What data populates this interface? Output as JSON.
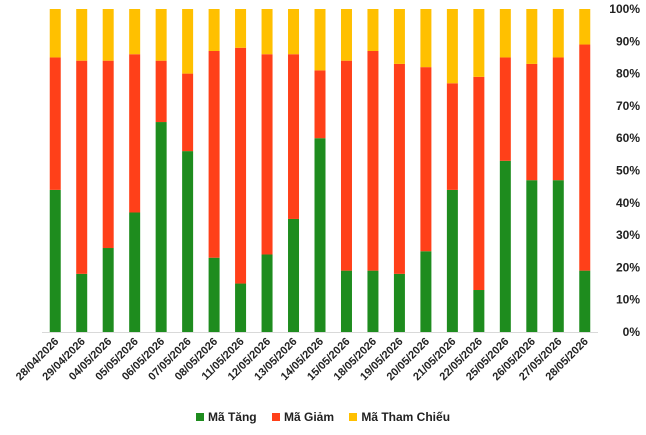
{
  "chart_data": {
    "type": "bar",
    "stacked": true,
    "percent": true,
    "categories": [
      "28/04/2026",
      "29/04/2026",
      "04/05/2026",
      "05/05/2026",
      "06/05/2026",
      "07/05/2026",
      "08/05/2026",
      "11/05/2026",
      "12/05/2026",
      "13/05/2026",
      "14/05/2026",
      "15/05/2026",
      "18/05/2026",
      "19/05/2026",
      "20/05/2026",
      "21/05/2026",
      "22/05/2026",
      "25/05/2026",
      "26/05/2026",
      "27/05/2026",
      "28/05/2026"
    ],
    "series": [
      {
        "name": "Mã Tăng",
        "color": "#1e8c1e",
        "values": [
          44,
          18,
          26,
          37,
          65,
          56,
          23,
          15,
          24,
          35,
          60,
          19,
          19,
          18,
          25,
          44,
          13,
          53,
          47,
          47,
          19
        ]
      },
      {
        "name": "Mã Giảm",
        "color": "#ff4019",
        "values": [
          41,
          66,
          58,
          49,
          19,
          24,
          64,
          73,
          62,
          51,
          21,
          65,
          68,
          65,
          57,
          33,
          66,
          32,
          36,
          38,
          70
        ]
      },
      {
        "name": "Mã Tham Chiếu",
        "color": "#ffc000",
        "values": [
          15,
          16,
          16,
          14,
          16,
          20,
          13,
          12,
          14,
          14,
          19,
          16,
          13,
          17,
          18,
          23,
          21,
          15,
          17,
          15,
          11
        ]
      }
    ],
    "y_ticks": [
      "0%",
      "10%",
      "20%",
      "30%",
      "40%",
      "50%",
      "60%",
      "70%",
      "80%",
      "90%",
      "100%"
    ],
    "ylim": [
      0,
      100
    ],
    "grid": false,
    "legend_position": "bottom"
  }
}
